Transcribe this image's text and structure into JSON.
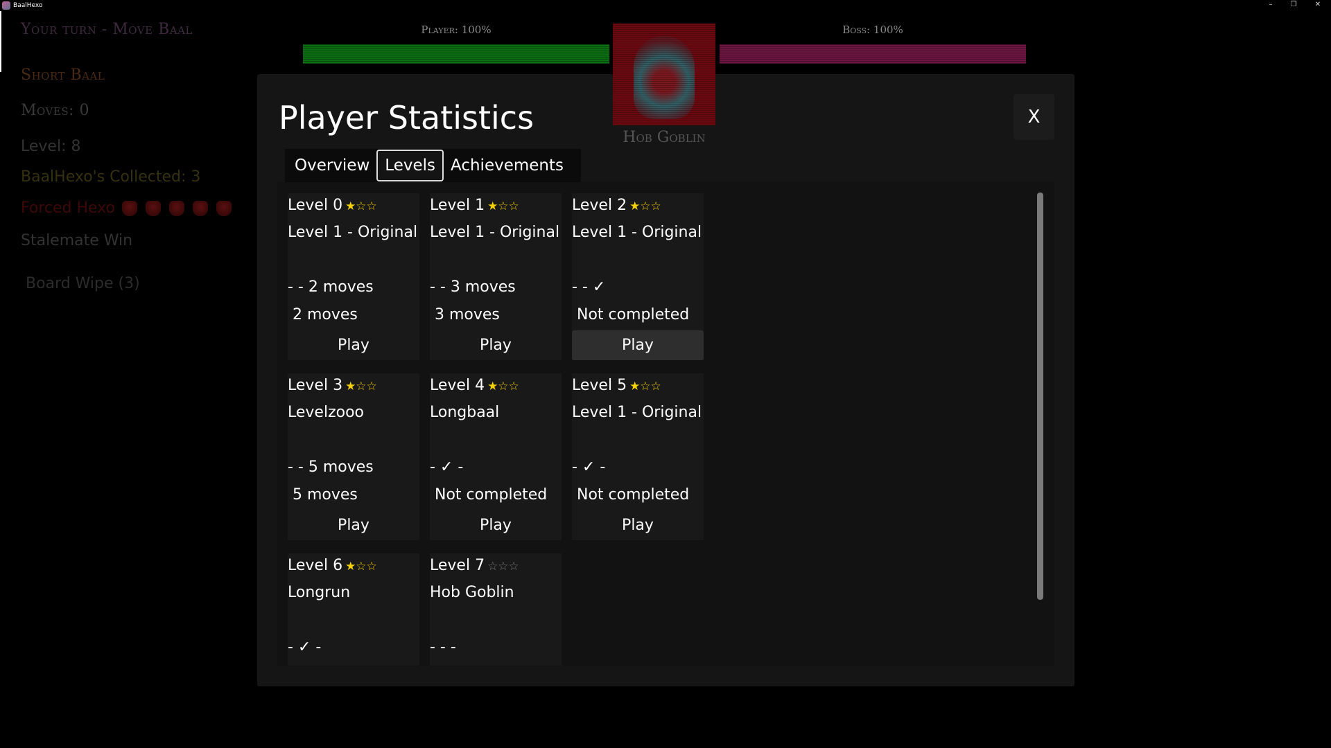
{
  "window": {
    "title": "BaalHexo",
    "controls": [
      "–",
      "❐",
      "✕"
    ]
  },
  "sidebar": {
    "turn": "Your turn - Move Baal",
    "mode": "Short Baal",
    "moves": "Moves: 0",
    "level": "Level: 8",
    "collected": "BaalHexo's Collected: 3",
    "forced": "Forced Hexo",
    "forced_icons": 5,
    "stalemate": "Stalemate Win",
    "board_wipe": "Board Wipe (3)"
  },
  "hud": {
    "player_label": "Player: 100%",
    "player_health": 100,
    "player_color": "#0b6e12",
    "boss_label": "Boss: 100%",
    "boss_health": 100,
    "boss_color": "#6b1540",
    "boss_name": "Hob Goblin"
  },
  "modal": {
    "title": "Player Statistics",
    "close_label": "X",
    "tabs": [
      {
        "label": "Overview"
      },
      {
        "label": "Levels",
        "active": true
      },
      {
        "label": "Achievements"
      }
    ],
    "levels": [
      {
        "title": "Level 0",
        "stars": 1,
        "name": "Level 1 - Original",
        "line1": "- - 2 moves",
        "line2": "2 moves",
        "play": "Play"
      },
      {
        "title": "Level 1",
        "stars": 1,
        "name": "Level 1 - Original",
        "line1": "- - 3 moves",
        "line2": "3 moves",
        "play": "Play"
      },
      {
        "title": "Level 2",
        "stars": 1,
        "name": "Level 1 - Original",
        "line1": "- - ✓",
        "line2": "Not completed",
        "play": "Play",
        "hover": true
      },
      {
        "title": "Level 3",
        "stars": 1,
        "name": "Levelzooo",
        "line1": "- - 5 moves",
        "line2": "5 moves",
        "play": "Play"
      },
      {
        "title": "Level 4",
        "stars": 1,
        "name": "Longbaal",
        "line1": "- ✓ -",
        "line2": "Not completed",
        "play": "Play"
      },
      {
        "title": "Level 5",
        "stars": 1,
        "name": "Level 1 - Original",
        "line1": "- ✓ -",
        "line2": "Not completed",
        "play": "Play"
      },
      {
        "title": "Level 6",
        "stars": 1,
        "name": "Longrun",
        "line1": "- ✓ -"
      },
      {
        "title": "Level 7",
        "stars": 0,
        "name": "Hob Goblin",
        "line1": "- - -"
      }
    ]
  }
}
